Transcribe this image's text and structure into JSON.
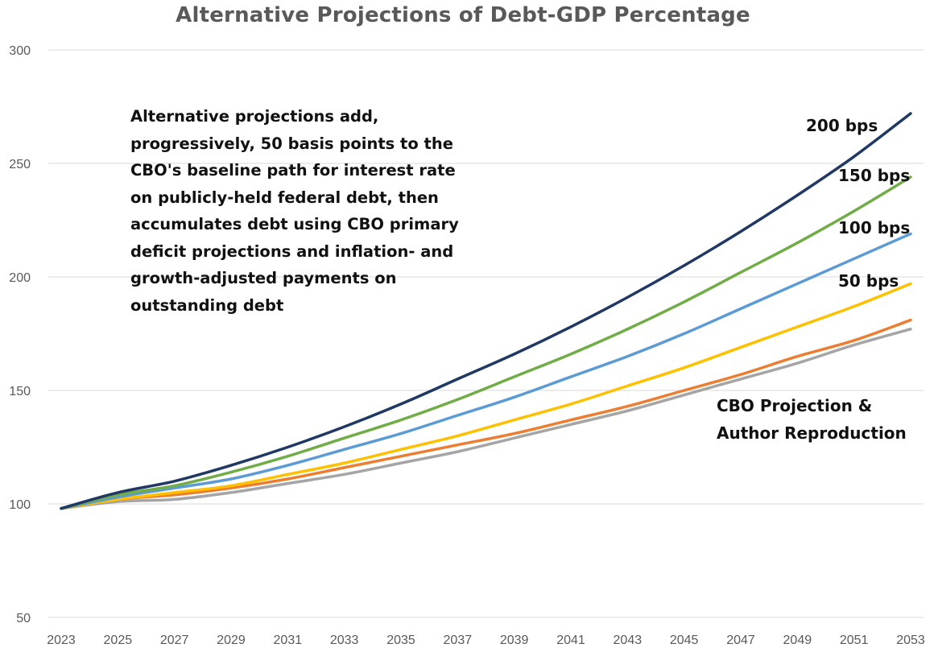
{
  "chart_data": {
    "type": "line",
    "title": "Alternative Projections of Debt-GDP Percentage",
    "xlabel": "",
    "ylabel": "",
    "x": [
      2023,
      2025,
      2027,
      2029,
      2031,
      2033,
      2035,
      2037,
      2039,
      2041,
      2043,
      2045,
      2047,
      2049,
      2051,
      2053
    ],
    "x_tick_labels": [
      "2023",
      "2025",
      "2027",
      "2029",
      "2031",
      "2033",
      "2035",
      "2037",
      "2039",
      "2041",
      "2043",
      "2045",
      "2047",
      "2049",
      "2051",
      "2053"
    ],
    "y_tick_labels": [
      "50",
      "100",
      "150",
      "200",
      "250",
      "300"
    ],
    "ylim": [
      50,
      300
    ],
    "xlim": [
      2023,
      2053
    ],
    "grid": "horizontal",
    "legend": "none",
    "series": [
      {
        "name": "200 bps",
        "color": "#203864",
        "values": [
          98,
          105,
          110,
          117,
          125,
          134,
          144,
          155,
          166,
          178,
          191,
          205,
          220,
          236,
          253,
          272
        ]
      },
      {
        "name": "150 bps",
        "color": "#70AD47",
        "values": [
          98,
          104,
          108,
          114,
          121,
          129,
          137,
          146,
          156,
          166,
          177,
          189,
          202,
          215,
          229,
          244
        ]
      },
      {
        "name": "100 bps",
        "color": "#5B9BD5",
        "values": [
          98,
          103,
          107,
          111,
          117,
          124,
          131,
          139,
          147,
          156,
          165,
          175,
          186,
          197,
          208,
          219
        ]
      },
      {
        "name": "50 bps",
        "color": "#FFC000",
        "values": [
          98,
          102,
          105,
          108,
          113,
          118,
          124,
          130,
          137,
          144,
          152,
          160,
          169,
          178,
          187,
          197
        ]
      },
      {
        "name": "CBO Projection",
        "color": "#ED7D31",
        "values": [
          98,
          102,
          104,
          107,
          111,
          116,
          121,
          126,
          131,
          137,
          143,
          150,
          157,
          165,
          172,
          181
        ]
      },
      {
        "name": "Author Reproduction",
        "color": "#A5A5A5",
        "values": [
          98,
          101,
          102,
          105,
          109,
          113,
          118,
          123,
          129,
          135,
          141,
          148,
          155,
          162,
          170,
          177
        ]
      }
    ],
    "series_labels": [
      "200 bps",
      "150 bps",
      "100 bps",
      "50 bps"
    ],
    "cbo_label_lines": [
      "CBO Projection &",
      "Author Reproduction"
    ],
    "annotation_lines": [
      "Alternative projections add,",
      "progressively, 50 basis points to the",
      "CBO's baseline path for interest rate",
      "on publicly-held federal debt, then",
      "accumulates debt using CBO primary",
      "deficit projections and inflation- and",
      "growth-adjusted payments on",
      "outstanding debt"
    ],
    "gridline_color": "#D9D9D9"
  }
}
